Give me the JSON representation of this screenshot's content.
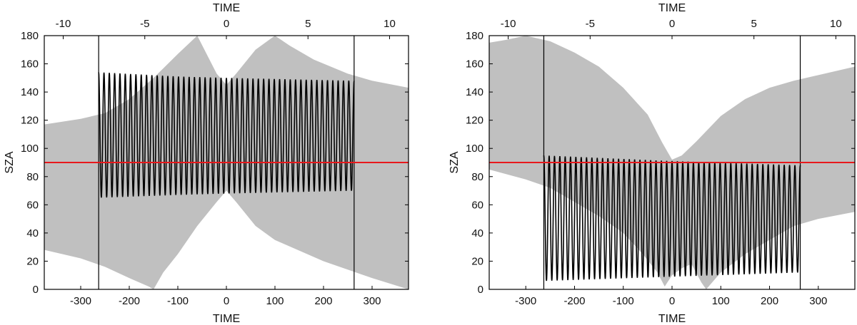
{
  "colors": {
    "band": "#c0c0c0",
    "oscillation": "#000000",
    "reference_line": "#e8191c",
    "frame": "#000000"
  },
  "chart_data": [
    {
      "type": "area",
      "title": "",
      "xlabel": "TIME",
      "x2label": "TIME",
      "ylabel": "SZA",
      "xlim": [
        -375,
        375
      ],
      "ylim": [
        0,
        180
      ],
      "x2lim": [
        -11.16,
        11.16
      ],
      "xticks": [
        -300,
        -200,
        -100,
        0,
        100,
        200,
        300
      ],
      "yticks": [
        0,
        20,
        40,
        60,
        80,
        100,
        120,
        140,
        160,
        180
      ],
      "x2ticks": [
        -10,
        -5,
        0,
        5,
        10
      ],
      "grid": false,
      "reference_line": {
        "y": 90
      },
      "bounds": [
        -263,
        263
      ],
      "band_upper": {
        "x": [
          -375,
          -300,
          -250,
          -200,
          -150,
          -100,
          -60,
          -20,
          0,
          20,
          60,
          100,
          130,
          180,
          250,
          300,
          375
        ],
        "y": [
          117,
          121,
          125,
          135,
          150,
          167,
          180,
          153,
          145,
          153,
          170,
          180,
          173,
          163,
          153,
          148,
          143
        ]
      },
      "band_lower": {
        "x": [
          -375,
          -300,
          -250,
          -200,
          -160,
          -150,
          -130,
          -100,
          -60,
          -20,
          0,
          20,
          60,
          100,
          200,
          300,
          375
        ],
        "y": [
          28,
          22,
          16,
          8,
          2,
          0,
          12,
          25,
          45,
          62,
          70,
          62,
          45,
          35,
          20,
          8,
          0
        ]
      },
      "oscillation": {
        "x_start": -263,
        "x_end": 263,
        "cycles": 48,
        "upper": {
          "x": [
            -263,
            -100,
            0,
            263
          ],
          "y": [
            154,
            151,
            150,
            148
          ]
        },
        "lower": {
          "x": [
            -263,
            -100,
            0,
            263
          ],
          "y": [
            65,
            67,
            68,
            70
          ]
        }
      }
    },
    {
      "type": "area",
      "title": "",
      "xlabel": "TIME",
      "x2label": "TIME",
      "ylabel": "SZA",
      "xlim": [
        -375,
        375
      ],
      "ylim": [
        0,
        180
      ],
      "x2lim": [
        -11.16,
        11.16
      ],
      "xticks": [
        -300,
        -200,
        -100,
        0,
        100,
        200,
        300
      ],
      "yticks": [
        0,
        20,
        40,
        60,
        80,
        100,
        120,
        140,
        160,
        180
      ],
      "x2ticks": [
        -10,
        -5,
        0,
        5,
        10
      ],
      "grid": false,
      "reference_line": {
        "y": 90
      },
      "bounds": [
        -263,
        263
      ],
      "band_upper": {
        "x": [
          -375,
          -340,
          -300,
          -250,
          -200,
          -150,
          -100,
          -50,
          -20,
          0,
          20,
          50,
          100,
          150,
          200,
          250,
          300,
          375
        ],
        "y": [
          175,
          177,
          180,
          176,
          168,
          158,
          143,
          124,
          104,
          92,
          95,
          105,
          123,
          135,
          143,
          148,
          152,
          158
        ]
      },
      "band_lower": {
        "x": [
          -375,
          -300,
          -250,
          -200,
          -150,
          -100,
          -60,
          -30,
          -15,
          0,
          20,
          40,
          60,
          70,
          100,
          150,
          200,
          250,
          300,
          375
        ],
        "y": [
          85,
          78,
          72,
          62,
          52,
          40,
          25,
          12,
          2,
          10,
          15,
          18,
          5,
          0,
          12,
          25,
          35,
          45,
          50,
          55
        ]
      },
      "oscillation": {
        "x_start": -263,
        "x_end": 263,
        "cycles": 48,
        "upper": {
          "x": [
            -263,
            0,
            263
          ],
          "y": [
            95,
            91,
            88
          ]
        },
        "lower": {
          "x": [
            -263,
            0,
            263
          ],
          "y": [
            6,
            9,
            12
          ]
        }
      }
    }
  ]
}
